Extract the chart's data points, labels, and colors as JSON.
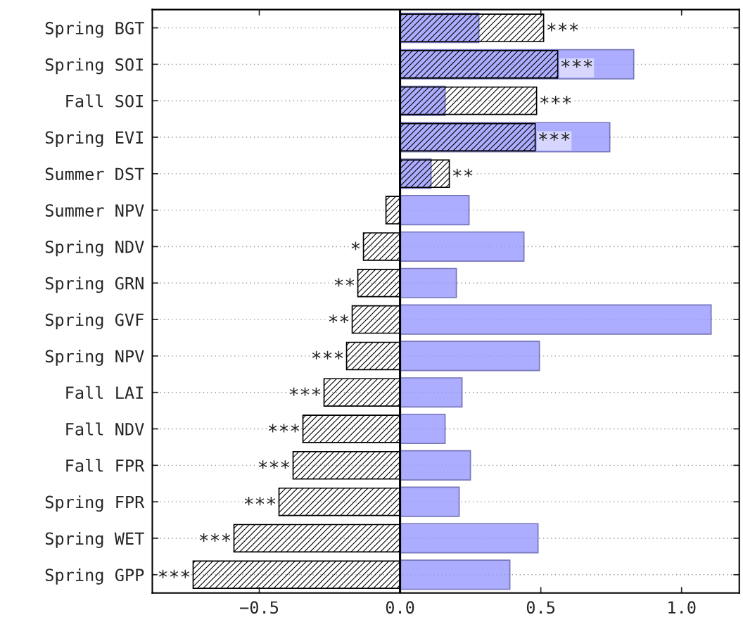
{
  "chart_data": {
    "type": "bar",
    "orientation": "horizontal",
    "categories": [
      "Spring BGT",
      "Spring SOI",
      "Fall SOI",
      "Spring EVI",
      "Summer DST",
      "Summer NPV",
      "Spring NDV",
      "Spring GRN",
      "Spring GVF",
      "Spring NPV",
      "Fall LAI",
      "Fall NDV",
      "Fall FPR",
      "Spring FPR",
      "Spring WET",
      "Spring GPP"
    ],
    "series": [
      {
        "color": "#9999ff",
        "values": [
          0.28,
          0.83,
          0.16,
          0.745,
          0.11,
          0.245,
          0.44,
          0.2,
          1.105,
          0.495,
          0.22,
          0.16,
          0.25,
          0.21,
          0.49,
          0.39
        ]
      },
      {
        "color": "#000000",
        "values": [
          0.51,
          0.56,
          0.485,
          0.48,
          0.175,
          -0.05,
          -0.13,
          -0.15,
          -0.17,
          -0.19,
          -0.27,
          -0.345,
          -0.38,
          -0.43,
          -0.59,
          -0.735
        ],
        "value_labels": [
          "***",
          "***",
          "***",
          "***",
          "**",
          null,
          "*",
          "**",
          "**",
          "***",
          "***",
          "***",
          "***",
          "***",
          "***",
          "***"
        ]
      }
    ],
    "xlim": [
      -0.88,
      1.205
    ],
    "xticks": [
      {
        "value": -0.5,
        "label": "−0.5"
      },
      {
        "value": 0,
        "label": "0.0"
      },
      {
        "value": 0.5,
        "label": "0.5"
      },
      {
        "value": 1.0,
        "label": "1.0"
      }
    ],
    "ref_lines": [
      {
        "axis": "x",
        "value": 0,
        "color": "#000000"
      }
    ],
    "grid": "y"
  }
}
